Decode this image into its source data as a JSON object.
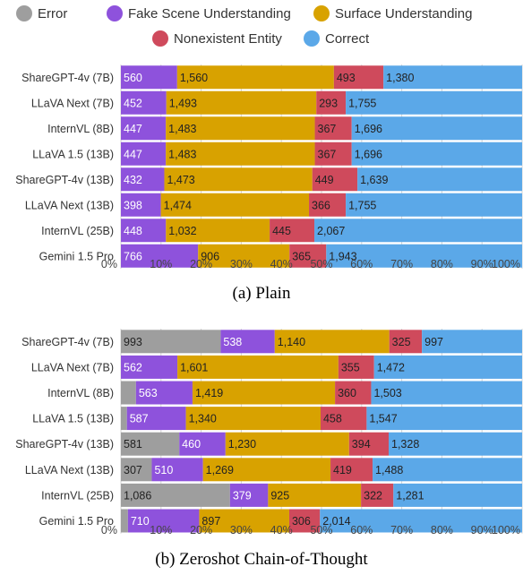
{
  "legend": [
    {
      "name": "Error",
      "color": "#9e9e9e"
    },
    {
      "name": "Fake Scene Understanding",
      "color": "#8e52dc"
    },
    {
      "name": "Surface Understanding",
      "color": "#d8a200"
    },
    {
      "name": "Nonexistent Entity",
      "color": "#cf4a5c"
    },
    {
      "name": "Correct",
      "color": "#5ba8e8"
    }
  ],
  "chart_data": [
    {
      "type": "bar",
      "orientation": "horizontal",
      "stacked": "percent",
      "caption": "(a) Plain",
      "categories": [
        "ShareGPT-4v (7B)",
        "LLaVA Next (7B)",
        "InternVL (8B)",
        "LLaVA 1.5 (13B)",
        "ShareGPT-4v (13B)",
        "LLaVA Next (13B)",
        "InternVL (25B)",
        "Gemini 1.5 Pro"
      ],
      "x_ticks": [
        "0%",
        "10%",
        "20%",
        "30%",
        "40%",
        "50%",
        "60%",
        "70%",
        "80%",
        "90%",
        "100%"
      ],
      "grid": true,
      "series": [
        {
          "name": "Error",
          "values": [
            0,
            0,
            0,
            0,
            0,
            0,
            0,
            0
          ]
        },
        {
          "name": "Fake Scene Understanding",
          "values": [
            560,
            452,
            447,
            447,
            432,
            398,
            448,
            766
          ]
        },
        {
          "name": "Surface Understanding",
          "values": [
            1560,
            1493,
            1483,
            1483,
            1473,
            1474,
            1032,
            906
          ]
        },
        {
          "name": "Nonexistent Entity",
          "values": [
            493,
            293,
            367,
            367,
            449,
            366,
            445,
            365
          ]
        },
        {
          "name": "Correct",
          "values": [
            1380,
            1755,
            1696,
            1696,
            1639,
            1755,
            2067,
            1943
          ]
        }
      ],
      "labels": [
        [
          "",
          "560",
          "1,560",
          "493",
          "1,380"
        ],
        [
          "",
          "452",
          "1,493",
          "293",
          "1,755"
        ],
        [
          "",
          "447",
          "1,483",
          "367",
          "1,696"
        ],
        [
          "",
          "447",
          "1,483",
          "367",
          "1,696"
        ],
        [
          "",
          "432",
          "1,473",
          "449",
          "1,639"
        ],
        [
          "",
          "398",
          "1,474",
          "366",
          "1,755"
        ],
        [
          "",
          "448",
          "1,032",
          "445",
          "2,067"
        ],
        [
          "",
          "766",
          "906",
          "365",
          "1,943"
        ]
      ]
    },
    {
      "type": "bar",
      "orientation": "horizontal",
      "stacked": "percent",
      "caption": "(b) Zeroshot Chain-of-Thought",
      "categories": [
        "ShareGPT-4v (7B)",
        "LLaVA Next (7B)",
        "InternVL (8B)",
        "LLaVA 1.5 (13B)",
        "ShareGPT-4v (13B)",
        "LLaVA Next (13B)",
        "InternVL (25B)",
        "Gemini 1.5 Pro"
      ],
      "x_ticks": [
        "0%",
        "10%",
        "20%",
        "30%",
        "40%",
        "50%",
        "60%",
        "70%",
        "80%",
        "90%",
        "100%"
      ],
      "grid": true,
      "series": [
        {
          "name": "Error",
          "values": [
            993,
            0,
            150,
            60,
            581,
            307,
            1086,
            70
          ]
        },
        {
          "name": "Fake Scene Understanding",
          "values": [
            538,
            562,
            563,
            587,
            460,
            510,
            379,
            710
          ]
        },
        {
          "name": "Surface Understanding",
          "values": [
            1140,
            1601,
            1419,
            1340,
            1230,
            1269,
            925,
            897
          ]
        },
        {
          "name": "Nonexistent Entity",
          "values": [
            325,
            355,
            360,
            458,
            394,
            419,
            322,
            306
          ]
        },
        {
          "name": "Correct",
          "values": [
            997,
            1472,
            1503,
            1547,
            1328,
            1488,
            1281,
            2014
          ]
        }
      ],
      "labels": [
        [
          "993",
          "538",
          "1,140",
          "325",
          "997"
        ],
        [
          "",
          "562",
          "1,601",
          "355",
          "1,472"
        ],
        [
          "",
          "563",
          "1,419",
          "360",
          "1,503"
        ],
        [
          "",
          "587",
          "1,340",
          "458",
          "1,547"
        ],
        [
          "581",
          "460",
          "1,230",
          "394",
          "1,328"
        ],
        [
          "307",
          "510",
          "1,269",
          "419",
          "1,488"
        ],
        [
          "1,086",
          "379",
          "925",
          "322",
          "1,281"
        ],
        [
          "",
          "710",
          "897",
          "306",
          "2,014"
        ]
      ]
    }
  ]
}
